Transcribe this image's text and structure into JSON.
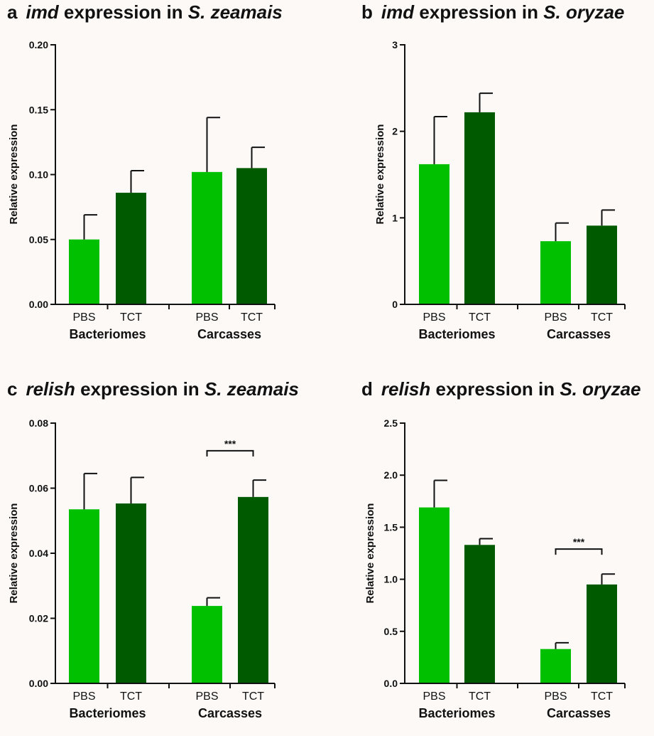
{
  "colors": {
    "pbs": "#00c000",
    "tct": "#005a00",
    "axis": "#111111"
  },
  "panels": [
    {
      "letter": "a",
      "title_gene": "imd",
      "title_mid": " expression in ",
      "title_species": "S. zeamais",
      "chart_data": {
        "type": "bar",
        "ylabel": "Relative expression",
        "ylim": [
          0,
          0.2
        ],
        "yticks": [
          "0.00",
          "0.05",
          "0.10",
          "0.15",
          "0.20"
        ],
        "ytick_values": [
          0,
          0.05,
          0.1,
          0.15,
          0.2
        ],
        "categories": [
          "PBS",
          "TCT",
          "PBS",
          "TCT"
        ],
        "groups": [
          "Bacteriomes",
          "Carcasses"
        ],
        "values": [
          0.05,
          0.086,
          0.102,
          0.105
        ],
        "errors": [
          0.019,
          0.017,
          0.042,
          0.016
        ],
        "significance": null
      }
    },
    {
      "letter": "b",
      "title_gene": "imd",
      "title_mid": " expression in ",
      "title_species": "S. oryzae",
      "chart_data": {
        "type": "bar",
        "ylabel": "Relative expression",
        "ylim": [
          0,
          3
        ],
        "yticks": [
          "0",
          "1",
          "2",
          "3"
        ],
        "ytick_values": [
          0,
          1,
          2,
          3
        ],
        "categories": [
          "PBS",
          "TCT",
          "PBS",
          "TCT"
        ],
        "groups": [
          "Bacteriomes",
          "Carcasses"
        ],
        "values": [
          1.62,
          2.22,
          0.73,
          0.91
        ],
        "errors": [
          0.55,
          0.22,
          0.21,
          0.18
        ],
        "significance": null
      }
    },
    {
      "letter": "c",
      "title_gene": "relish",
      "title_mid": " expression in ",
      "title_species": "S. zeamais",
      "chart_data": {
        "type": "bar",
        "ylabel": "Relative expression",
        "ylim": [
          0,
          0.08
        ],
        "yticks": [
          "0.00",
          "0.02",
          "0.04",
          "0.06",
          "0.08"
        ],
        "ytick_values": [
          0,
          0.02,
          0.04,
          0.06,
          0.08
        ],
        "categories": [
          "PBS",
          "TCT",
          "PBS",
          "TCT"
        ],
        "groups": [
          "Bacteriomes",
          "Carcasses"
        ],
        "values": [
          0.0535,
          0.0553,
          0.0238,
          0.0573
        ],
        "errors": [
          0.011,
          0.008,
          0.0025,
          0.0052
        ],
        "significance": {
          "label": "***",
          "between": [
            2,
            3
          ],
          "y": 0.0715
        }
      }
    },
    {
      "letter": "d",
      "title_gene": "relish",
      "title_mid": " expression in ",
      "title_species": "S. oryzae",
      "chart_data": {
        "type": "bar",
        "ylabel": "Relative expression",
        "ylim": [
          0,
          2.5
        ],
        "yticks": [
          "0.0",
          "0.5",
          "1.0",
          "1.5",
          "2.0",
          "2.5"
        ],
        "ytick_values": [
          0,
          0.5,
          1,
          1.5,
          2,
          2.5
        ],
        "categories": [
          "PBS",
          "TCT",
          "PBS",
          "TCT"
        ],
        "groups": [
          "Bacteriomes",
          "Carcasses"
        ],
        "values": [
          1.69,
          1.33,
          0.33,
          0.95
        ],
        "errors": [
          0.26,
          0.06,
          0.06,
          0.1
        ],
        "significance": {
          "label": "***",
          "between": [
            2,
            3
          ],
          "y": 1.29
        }
      }
    }
  ]
}
